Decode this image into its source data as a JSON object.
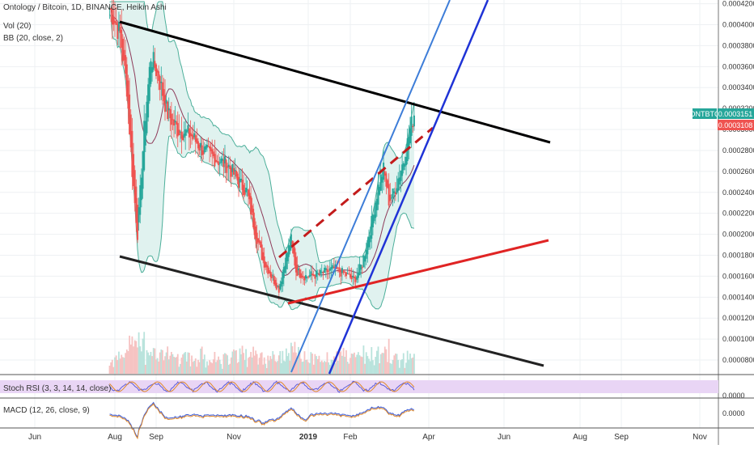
{
  "header": {
    "symbol_line": "Ontology / Bitcoin, 1D, BINANCE, Heikin Ashi",
    "vol_label": "Vol (20)",
    "bb_label": "BB (20, close, 2)"
  },
  "panes": {
    "stoch_label": "Stoch RSI (3, 3, 14, 14, close)",
    "macd_label": "MACD (12, 26, close, 9)",
    "stoch_axis_label": "0.0000",
    "macd_axis_label": "0.0000"
  },
  "price_tags": {
    "symbol": "ONTBTC",
    "last": "0.0003151",
    "second": "0.0003108"
  },
  "colors": {
    "up": "#26a69a",
    "down": "#ef5350",
    "bb_fill": "#e0f2ef",
    "bb_line": "#4caf9a",
    "basis": "#8e3b5a",
    "tag_green": "#26a69a",
    "tag_red": "#ef5350",
    "stoch_bg": "#e9d5f5"
  },
  "chart_data": {
    "type": "candlestick",
    "x_ticks": [
      "Jun",
      "Aug",
      "Sep",
      "Nov",
      "2019",
      "Feb",
      "Apr",
      "Jun",
      "Aug",
      "Sep",
      "Nov"
    ],
    "y_ticks": [
      "0.0004200",
      "0.0004000",
      "0.0003800",
      "0.0003600",
      "0.0003400",
      "0.0003200",
      "0.0003000",
      "0.0002800",
      "0.0002600",
      "0.0002400",
      "0.0002200",
      "0.0002000",
      "0.0001800",
      "0.0001600",
      "0.0001400",
      "0.0001200",
      "0.0001000",
      "0.0000800"
    ],
    "ylim": [
      7e-05,
      0.000422
    ],
    "price_path": [
      {
        "date": "2018-07-28",
        "close": 0.000416
      },
      {
        "date": "2018-08-05",
        "close": 0.00039
      },
      {
        "date": "2018-08-10",
        "close": 0.00034
      },
      {
        "date": "2018-08-14",
        "close": 0.00026
      },
      {
        "date": "2018-08-18",
        "close": 0.0002
      },
      {
        "date": "2018-08-23",
        "close": 0.0003
      },
      {
        "date": "2018-08-28",
        "close": 0.00037
      },
      {
        "date": "2018-09-03",
        "close": 0.00035
      },
      {
        "date": "2018-09-10",
        "close": 0.000315
      },
      {
        "date": "2018-09-18",
        "close": 0.0003
      },
      {
        "date": "2018-09-28",
        "close": 0.000295
      },
      {
        "date": "2018-10-08",
        "close": 0.00028
      },
      {
        "date": "2018-10-18",
        "close": 0.000272
      },
      {
        "date": "2018-10-28",
        "close": 0.000265
      },
      {
        "date": "2018-11-05",
        "close": 0.00025
      },
      {
        "date": "2018-11-12",
        "close": 0.00024
      },
      {
        "date": "2018-11-18",
        "close": 0.000205
      },
      {
        "date": "2018-11-25",
        "close": 0.000175
      },
      {
        "date": "2018-12-02",
        "close": 0.00016
      },
      {
        "date": "2018-12-08",
        "close": 0.000148
      },
      {
        "date": "2018-12-13",
        "close": 0.000175
      },
      {
        "date": "2018-12-18",
        "close": 0.000195
      },
      {
        "date": "2018-12-22",
        "close": 0.000165
      },
      {
        "date": "2018-12-30",
        "close": 0.00016
      },
      {
        "date": "2019-01-10",
        "close": 0.000162
      },
      {
        "date": "2019-01-20",
        "close": 0.000167
      },
      {
        "date": "2019-01-28",
        "close": 0.000162
      },
      {
        "date": "2019-02-04",
        "close": 0.000156
      },
      {
        "date": "2019-02-10",
        "close": 0.000172
      },
      {
        "date": "2019-02-16",
        "close": 0.000205
      },
      {
        "date": "2019-02-22",
        "close": 0.000245
      },
      {
        "date": "2019-02-26",
        "close": 0.000262
      },
      {
        "date": "2019-03-02",
        "close": 0.000232
      },
      {
        "date": "2019-03-06",
        "close": 0.00024
      },
      {
        "date": "2019-03-10",
        "close": 0.000258
      },
      {
        "date": "2019-03-14",
        "close": 0.000275
      },
      {
        "date": "2019-03-18",
        "close": 0.0003
      },
      {
        "date": "2019-03-21",
        "close": 0.0003151
      }
    ]
  }
}
